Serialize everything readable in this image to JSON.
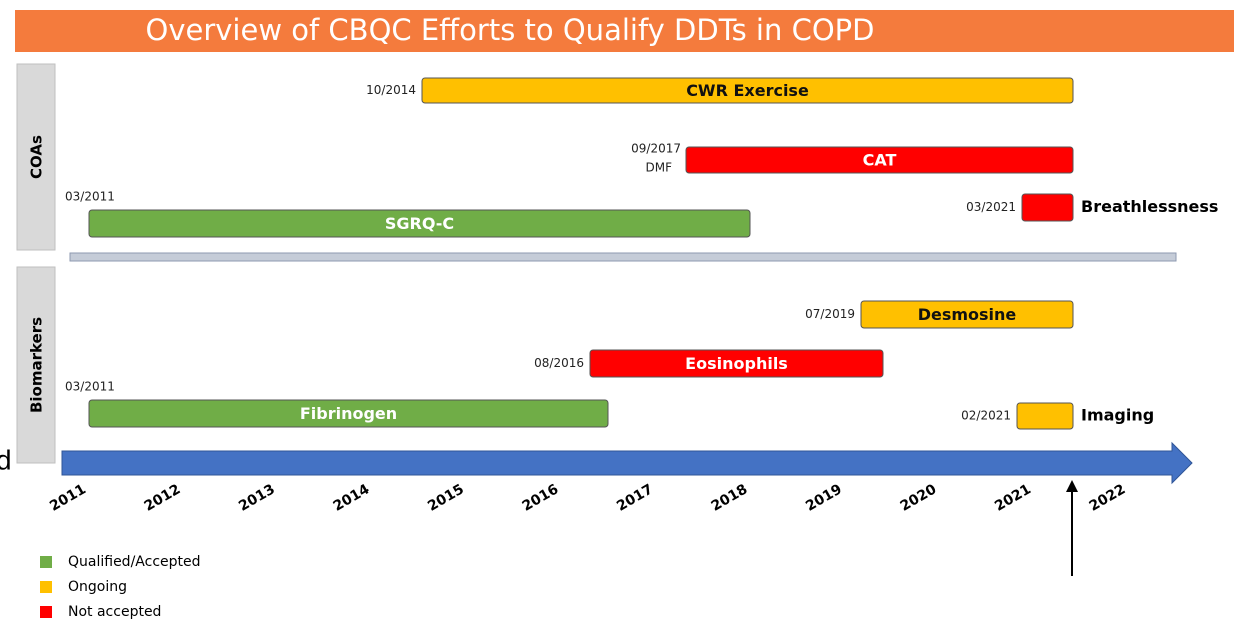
{
  "title": "Overview of CBQC Efforts to Qualify DDTs in COPD",
  "groups": [
    {
      "label": "COAs"
    },
    {
      "label": "Biomarkers"
    }
  ],
  "bars": [
    {
      "name": "CWR Exercise",
      "date": "10/2014",
      "color": "#ffc000"
    },
    {
      "name": "CAT",
      "date": "09/2017",
      "note": "DMF",
      "color": "#ff0000"
    },
    {
      "name": "SGRQ-C",
      "date": "03/2011",
      "color": "#70ad47"
    },
    {
      "name": "Breathlessness",
      "date": "03/2021",
      "color": "#ff0000"
    },
    {
      "name": "Desmosine",
      "date": "07/2019",
      "color": "#ffc000"
    },
    {
      "name": "Eosinophils",
      "date": "08/2016",
      "color": "#ff0000"
    },
    {
      "name": "Fibrinogen",
      "date": "03/2011",
      "color": "#70ad47"
    },
    {
      "name": "Imaging",
      "date": "02/2021",
      "color": "#ffc000"
    }
  ],
  "years": [
    "2011",
    "2012",
    "2013",
    "2014",
    "2015",
    "2016",
    "2017",
    "2018",
    "2019",
    "2020",
    "2021",
    "2022"
  ],
  "legend": [
    {
      "label": "Qualified/Accepted",
      "color": "#70ad47"
    },
    {
      "label": "Ongoing",
      "color": "#ffc000"
    },
    {
      "label": "Not accepted",
      "color": "#ff0000"
    }
  ],
  "stray_text": "d"
}
